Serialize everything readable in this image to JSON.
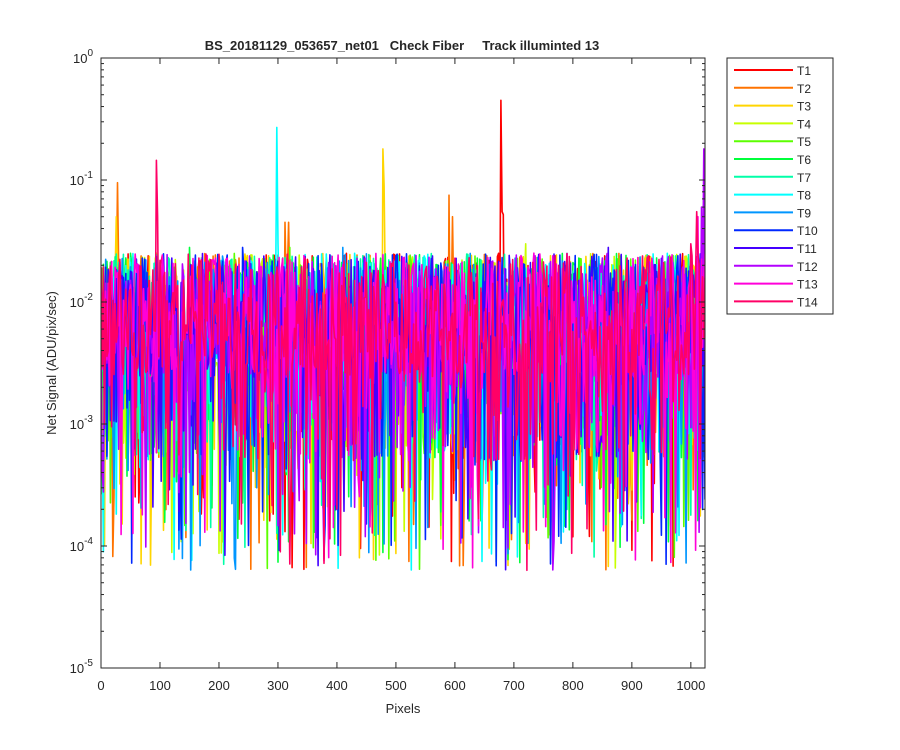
{
  "chart_data": {
    "type": "line",
    "title": "BS_20181129_053657_net01   Check Fiber     Track illuminted 13",
    "xlabel": "Pixels",
    "ylabel": "Net Signal (ADU/pix/sec)",
    "xlim": [
      0,
      1024
    ],
    "ylim": [
      1e-05,
      1
    ],
    "yscale": "log",
    "grid": false,
    "legend_position": "outside-top-right",
    "x_ticks": [
      {
        "value": 0,
        "label": "0"
      },
      {
        "value": 100,
        "label": "100"
      },
      {
        "value": 200,
        "label": "200"
      },
      {
        "value": 300,
        "label": "300"
      },
      {
        "value": 400,
        "label": "400"
      },
      {
        "value": 500,
        "label": "500"
      },
      {
        "value": 600,
        "label": "600"
      },
      {
        "value": 700,
        "label": "700"
      },
      {
        "value": 800,
        "label": "800"
      },
      {
        "value": 900,
        "label": "900"
      },
      {
        "value": 1000,
        "label": "1000"
      }
    ],
    "y_ticks": [
      {
        "value": 1,
        "base": "10",
        "exp": "0"
      },
      {
        "value": 0.1,
        "base": "10",
        "exp": "-1"
      },
      {
        "value": 0.01,
        "base": "10",
        "exp": "-2"
      },
      {
        "value": 0.001,
        "base": "10",
        "exp": "-3"
      },
      {
        "value": 0.0001,
        "base": "10",
        "exp": "-4"
      },
      {
        "value": 1e-05,
        "base": "10",
        "exp": "-5"
      }
    ],
    "series": [
      {
        "name": "T1",
        "color": "#ff0000",
        "spikes": [
          [
            678,
            0.45
          ],
          [
            680,
            0.055
          ],
          [
            682,
            0.052
          ]
        ]
      },
      {
        "name": "T2",
        "color": "#ff7300",
        "spikes": [
          [
            27,
            0.095
          ],
          [
            312,
            0.045
          ],
          [
            318,
            0.045
          ],
          [
            590,
            0.075
          ],
          [
            595,
            0.05
          ]
        ]
      },
      {
        "name": "T3",
        "color": "#ffd500",
        "spikes": [
          [
            25,
            0.05
          ],
          [
            477,
            0.18
          ],
          [
            479,
            0.09
          ]
        ]
      },
      {
        "name": "T4",
        "color": "#c8ff00",
        "spikes": [
          [
            720,
            0.03
          ]
        ]
      },
      {
        "name": "T5",
        "color": "#5cff00",
        "spikes": [
          [
            320,
            0.028
          ]
        ]
      },
      {
        "name": "T6",
        "color": "#00ff3b",
        "spikes": [
          [
            150,
            0.028
          ]
        ]
      },
      {
        "name": "T7",
        "color": "#00ffa8",
        "spikes": [
          [
            560,
            0.025
          ]
        ]
      },
      {
        "name": "T8",
        "color": "#00ffff",
        "spikes": [
          [
            298,
            0.27
          ],
          [
            300,
            0.03
          ]
        ]
      },
      {
        "name": "T9",
        "color": "#0096ff",
        "spikes": [
          [
            410,
            0.028
          ]
        ]
      },
      {
        "name": "T10",
        "color": "#0028ff",
        "spikes": [
          [
            240,
            0.028
          ]
        ]
      },
      {
        "name": "T11",
        "color": "#4400ff",
        "spikes": [
          [
            860,
            0.028
          ]
        ]
      },
      {
        "name": "T12",
        "color": "#b300ff",
        "spikes": [
          [
            1022,
            0.18
          ],
          [
            1018,
            0.06
          ]
        ]
      },
      {
        "name": "T13",
        "color": "#ff00d9",
        "spikes": [
          [
            1012,
            0.05
          ]
        ]
      },
      {
        "name": "T14",
        "color": "#ff0066",
        "spikes": [
          [
            93,
            0.145
          ],
          [
            95,
            0.05
          ],
          [
            1010,
            0.055
          ],
          [
            1000,
            0.03
          ]
        ]
      }
    ]
  }
}
